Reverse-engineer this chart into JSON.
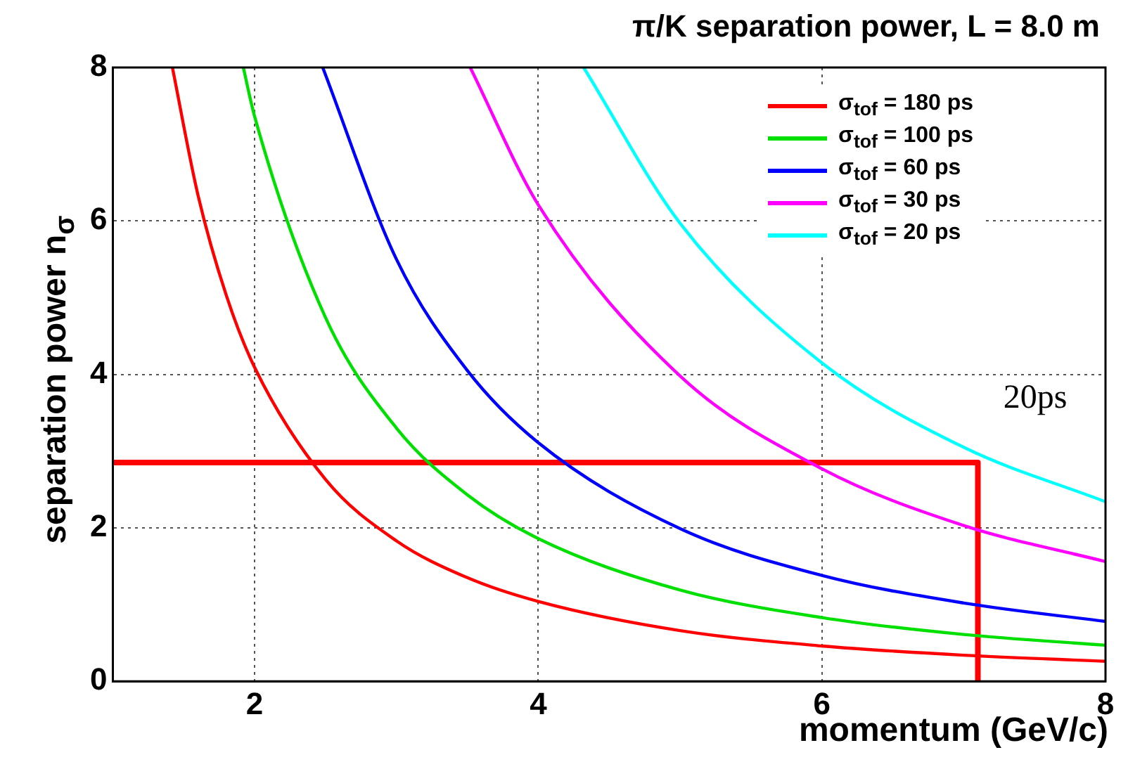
{
  "chart_data": {
    "type": "line",
    "title": "π/K separation power, L = 8.0 m",
    "xlabel": "momentum (GeV/c)",
    "ylabel": "separation power n$_{σ}$",
    "xlim": [
      1,
      8
    ],
    "xticks": [
      2,
      4,
      6,
      8
    ],
    "ylim": [
      0,
      8
    ],
    "yticks": [
      0,
      2,
      4,
      6,
      8
    ],
    "grid": true,
    "legend": "top right",
    "marker": "none",
    "line_style": "solid",
    "series": [
      {
        "name": "σ$_{tof}$ = 180 ps",
        "color": "#ff0000",
        "x": [
          1.42,
          1.6,
          1.8,
          2,
          2.5,
          3,
          3.5,
          4,
          5,
          6,
          7,
          8
        ],
        "values": [
          8.0,
          6.34,
          5.03,
          4.09,
          2.63,
          1.83,
          1.35,
          1.04,
          0.66,
          0.46,
          0.34,
          0.26
        ]
      },
      {
        "name": "σ$_{tof}$ = 100 ps",
        "color": "#00e000",
        "x": [
          1.92,
          2,
          2.5,
          3,
          3.5,
          4,
          5,
          6,
          7,
          8
        ],
        "values": [
          8.0,
          7.36,
          4.74,
          3.3,
          2.43,
          1.86,
          1.19,
          0.83,
          0.61,
          0.47
        ]
      },
      {
        "name": "σ$_{tof}$ = 60 ps",
        "color": "#0000ff",
        "x": [
          2.48,
          3,
          3.5,
          4,
          5,
          6,
          7,
          8
        ],
        "values": [
          8.0,
          5.5,
          4.05,
          3.11,
          1.99,
          1.38,
          1.02,
          0.78
        ]
      },
      {
        "name": "σ$_{tof}$ = 30 ps",
        "color": "#ff00ff",
        "x": [
          3.52,
          4,
          5,
          6,
          7,
          8
        ],
        "values": [
          8.0,
          6.21,
          3.98,
          2.77,
          2.03,
          1.56
        ]
      },
      {
        "name": "σ$_{tof}$ = 20 ps",
        "color": "#00ffff",
        "x": [
          4.32,
          5,
          6,
          7,
          8
        ],
        "values": [
          8.0,
          5.97,
          4.15,
          3.05,
          2.34
        ]
      },
      {
        "color": "#ff0000",
        "x": [
          1,
          7.1,
          7.1
        ],
        "values": [
          2.85,
          2.85,
          0
        ]
      }
    ],
    "annotations": [
      "20ps"
    ]
  }
}
